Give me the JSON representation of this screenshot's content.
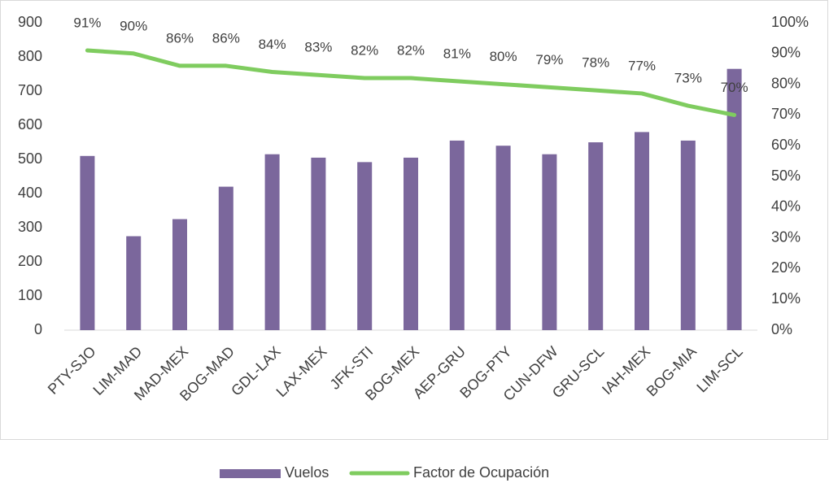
{
  "chart_data": {
    "type": "bar_line",
    "categories": [
      "PTY-SJO",
      "LIM-MAD",
      "MAD-MEX",
      "BOG-MAD",
      "GDL-LAX",
      "LAX-MEX",
      "JFK-STI",
      "BOG-MEX",
      "AEP-GRU",
      "BOG-PTY",
      "CUN-DFW",
      "GRU-SCL",
      "IAH-MEX",
      "BOG-MIA",
      "LIM-SCL"
    ],
    "series": [
      {
        "name": "Vuelos",
        "type": "bar",
        "color": "#7b679c",
        "axis": "y",
        "values": [
          510,
          275,
          325,
          420,
          515,
          505,
          492,
          505,
          555,
          540,
          515,
          550,
          580,
          555,
          765
        ]
      },
      {
        "name": "Factor de Ocupación",
        "type": "line",
        "color": "#7fcc5f",
        "axis": "y2",
        "values": [
          91,
          90,
          86,
          86,
          84,
          83,
          82,
          82,
          81,
          80,
          79,
          78,
          77,
          73,
          70
        ],
        "value_labels": [
          "91%",
          "90%",
          "86%",
          "86%",
          "84%",
          "83%",
          "82%",
          "82%",
          "81%",
          "80%",
          "79%",
          "78%",
          "77%",
          "73%",
          "70%"
        ]
      }
    ],
    "ylim": [
      0,
      900
    ],
    "yticks": [
      0,
      100,
      200,
      300,
      400,
      500,
      600,
      700,
      800,
      900
    ],
    "y2lim": [
      0,
      100
    ],
    "y2ticks": [
      {
        "value": 0,
        "label": "0%"
      },
      {
        "value": 10,
        "label": "10%"
      },
      {
        "value": 20,
        "label": "20%"
      },
      {
        "value": 30,
        "label": "30%"
      },
      {
        "value": 40,
        "label": "40%"
      },
      {
        "value": 50,
        "label": "50%"
      },
      {
        "value": 60,
        "label": "60%"
      },
      {
        "value": 70,
        "label": "70%"
      },
      {
        "value": 80,
        "label": "80%"
      },
      {
        "value": 90,
        "label": "90%"
      },
      {
        "value": 100,
        "label": "100%"
      }
    ],
    "legend": "bottom"
  }
}
